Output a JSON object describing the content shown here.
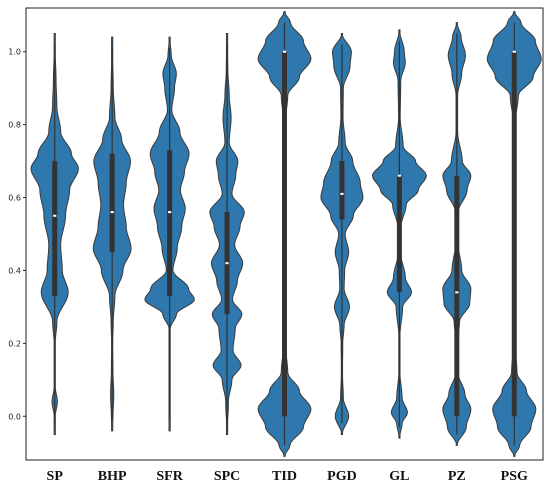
{
  "chart_data": {
    "type": "violin",
    "title": "",
    "xlabel": "",
    "ylabel": "",
    "ylim": [
      -0.12,
      1.12
    ],
    "yticks": [
      0.0,
      0.2,
      0.4,
      0.6,
      0.8,
      1.0
    ],
    "ytick_labels": [
      "0.0",
      "0.2",
      "0.4",
      "0.6",
      "0.8",
      "1.0"
    ],
    "color": "#2e78ae",
    "box_color": "#333333",
    "categories": [
      "SP",
      "BHP",
      "SFR",
      "SPC",
      "TID",
      "PGD",
      "GL",
      "PZ",
      "PSG"
    ],
    "series": [
      {
        "name": "SP",
        "min": -0.05,
        "max": 1.05,
        "q1": 0.33,
        "median": 0.55,
        "q3": 0.7,
        "density": [
          [
            -0.05,
            0.003
          ],
          [
            0.0,
            0.02
          ],
          [
            0.04,
            0.1
          ],
          [
            0.08,
            0.02
          ],
          [
            0.14,
            0.01
          ],
          [
            0.2,
            0.02
          ],
          [
            0.26,
            0.08
          ],
          [
            0.34,
            0.5
          ],
          [
            0.4,
            0.28
          ],
          [
            0.47,
            0.22
          ],
          [
            0.55,
            0.4
          ],
          [
            0.62,
            0.55
          ],
          [
            0.68,
            0.88
          ],
          [
            0.72,
            0.62
          ],
          [
            0.78,
            0.22
          ],
          [
            0.85,
            0.08
          ],
          [
            0.92,
            0.05
          ],
          [
            1.0,
            0.02
          ],
          [
            1.05,
            0.003
          ]
        ]
      },
      {
        "name": "BHP",
        "min": -0.04,
        "max": 1.04,
        "q1": 0.45,
        "median": 0.56,
        "q3": 0.72,
        "density": [
          [
            -0.04,
            0.003
          ],
          [
            0.0,
            0.03
          ],
          [
            0.06,
            0.06
          ],
          [
            0.12,
            0.03
          ],
          [
            0.2,
            0.02
          ],
          [
            0.26,
            0.04
          ],
          [
            0.33,
            0.1
          ],
          [
            0.4,
            0.4
          ],
          [
            0.46,
            0.7
          ],
          [
            0.52,
            0.52
          ],
          [
            0.58,
            0.42
          ],
          [
            0.64,
            0.52
          ],
          [
            0.7,
            0.68
          ],
          [
            0.76,
            0.35
          ],
          [
            0.82,
            0.1
          ],
          [
            0.9,
            0.04
          ],
          [
            0.98,
            0.02
          ],
          [
            1.04,
            0.003
          ]
        ]
      },
      {
        "name": "SFR",
        "min": -0.04,
        "max": 1.04,
        "q1": 0.33,
        "median": 0.56,
        "q3": 0.73,
        "density": [
          [
            -0.04,
            0.003
          ],
          [
            0.05,
            0.01
          ],
          [
            0.15,
            0.01
          ],
          [
            0.24,
            0.02
          ],
          [
            0.28,
            0.25
          ],
          [
            0.32,
            0.92
          ],
          [
            0.35,
            0.7
          ],
          [
            0.4,
            0.12
          ],
          [
            0.46,
            0.28
          ],
          [
            0.52,
            0.45
          ],
          [
            0.57,
            0.58
          ],
          [
            0.62,
            0.4
          ],
          [
            0.67,
            0.55
          ],
          [
            0.72,
            0.72
          ],
          [
            0.78,
            0.38
          ],
          [
            0.84,
            0.08
          ],
          [
            0.9,
            0.18
          ],
          [
            0.94,
            0.25
          ],
          [
            0.99,
            0.06
          ],
          [
            1.04,
            0.003
          ]
        ]
      },
      {
        "name": "SPC",
        "min": -0.05,
        "max": 1.05,
        "q1": 0.28,
        "median": 0.42,
        "q3": 0.56,
        "density": [
          [
            -0.05,
            0.003
          ],
          [
            0.04,
            0.05
          ],
          [
            0.1,
            0.18
          ],
          [
            0.14,
            0.52
          ],
          [
            0.18,
            0.22
          ],
          [
            0.24,
            0.3
          ],
          [
            0.28,
            0.55
          ],
          [
            0.32,
            0.2
          ],
          [
            0.37,
            0.38
          ],
          [
            0.42,
            0.58
          ],
          [
            0.47,
            0.28
          ],
          [
            0.52,
            0.48
          ],
          [
            0.56,
            0.64
          ],
          [
            0.61,
            0.18
          ],
          [
            0.66,
            0.32
          ],
          [
            0.7,
            0.4
          ],
          [
            0.75,
            0.08
          ],
          [
            0.82,
            0.15
          ],
          [
            0.88,
            0.08
          ],
          [
            0.95,
            0.03
          ],
          [
            1.05,
            0.003
          ]
        ]
      },
      {
        "name": "TID",
        "min": -0.11,
        "max": 1.11,
        "q1": 0.0,
        "median": 1.0,
        "q3": 1.0,
        "density": [
          [
            -0.11,
            0.003
          ],
          [
            -0.08,
            0.2
          ],
          [
            -0.03,
            0.7
          ],
          [
            0.02,
            0.98
          ],
          [
            0.07,
            0.55
          ],
          [
            0.12,
            0.12
          ],
          [
            0.2,
            0.03
          ],
          [
            0.3,
            0.01
          ],
          [
            0.4,
            0.01
          ],
          [
            0.5,
            0.01
          ],
          [
            0.6,
            0.01
          ],
          [
            0.7,
            0.01
          ],
          [
            0.8,
            0.02
          ],
          [
            0.88,
            0.12
          ],
          [
            0.93,
            0.55
          ],
          [
            0.98,
            0.98
          ],
          [
            1.03,
            0.7
          ],
          [
            1.08,
            0.22
          ],
          [
            1.11,
            0.003
          ]
        ]
      },
      {
        "name": "PGD",
        "min": -0.05,
        "max": 1.05,
        "q1": 0.54,
        "median": 0.61,
        "q3": 0.7,
        "density": [
          [
            -0.05,
            0.003
          ],
          [
            0.0,
            0.25
          ],
          [
            0.05,
            0.05
          ],
          [
            0.12,
            0.02
          ],
          [
            0.2,
            0.03
          ],
          [
            0.25,
            0.08
          ],
          [
            0.3,
            0.28
          ],
          [
            0.35,
            0.08
          ],
          [
            0.4,
            0.1
          ],
          [
            0.45,
            0.25
          ],
          [
            0.5,
            0.12
          ],
          [
            0.55,
            0.42
          ],
          [
            0.6,
            0.78
          ],
          [
            0.64,
            0.68
          ],
          [
            0.7,
            0.4
          ],
          [
            0.75,
            0.12
          ],
          [
            0.82,
            0.04
          ],
          [
            0.9,
            0.05
          ],
          [
            0.96,
            0.3
          ],
          [
            1.0,
            0.35
          ],
          [
            1.05,
            0.003
          ]
        ]
      },
      {
        "name": "GL",
        "min": -0.06,
        "max": 1.06,
        "q1": 0.34,
        "median": 0.66,
        "q3": 0.66,
        "density": [
          [
            -0.06,
            0.003
          ],
          [
            -0.02,
            0.1
          ],
          [
            0.01,
            0.3
          ],
          [
            0.05,
            0.1
          ],
          [
            0.12,
            0.02
          ],
          [
            0.22,
            0.02
          ],
          [
            0.3,
            0.12
          ],
          [
            0.34,
            0.45
          ],
          [
            0.38,
            0.22
          ],
          [
            0.45,
            0.04
          ],
          [
            0.52,
            0.06
          ],
          [
            0.58,
            0.25
          ],
          [
            0.62,
            0.7
          ],
          [
            0.66,
            1.0
          ],
          [
            0.7,
            0.6
          ],
          [
            0.74,
            0.14
          ],
          [
            0.82,
            0.03
          ],
          [
            0.92,
            0.05
          ],
          [
            0.97,
            0.22
          ],
          [
            1.0,
            0.18
          ],
          [
            1.06,
            0.003
          ]
        ]
      },
      {
        "name": "PZ",
        "min": -0.08,
        "max": 1.08,
        "q1": 0.0,
        "median": 0.34,
        "q3": 0.66,
        "density": [
          [
            -0.08,
            0.003
          ],
          [
            -0.03,
            0.35
          ],
          [
            0.02,
            0.52
          ],
          [
            0.06,
            0.3
          ],
          [
            0.12,
            0.04
          ],
          [
            0.2,
            0.02
          ],
          [
            0.26,
            0.1
          ],
          [
            0.31,
            0.48
          ],
          [
            0.35,
            0.52
          ],
          [
            0.4,
            0.18
          ],
          [
            0.48,
            0.03
          ],
          [
            0.56,
            0.05
          ],
          [
            0.62,
            0.38
          ],
          [
            0.66,
            0.52
          ],
          [
            0.7,
            0.2
          ],
          [
            0.78,
            0.03
          ],
          [
            0.88,
            0.03
          ],
          [
            0.94,
            0.18
          ],
          [
            0.99,
            0.32
          ],
          [
            1.04,
            0.16
          ],
          [
            1.08,
            0.003
          ]
        ]
      },
      {
        "name": "PSG",
        "min": -0.11,
        "max": 1.11,
        "q1": 0.0,
        "median": 1.0,
        "q3": 1.0,
        "density": [
          [
            -0.11,
            0.003
          ],
          [
            -0.08,
            0.2
          ],
          [
            -0.03,
            0.62
          ],
          [
            0.02,
            0.8
          ],
          [
            0.07,
            0.45
          ],
          [
            0.12,
            0.1
          ],
          [
            0.2,
            0.03
          ],
          [
            0.3,
            0.01
          ],
          [
            0.4,
            0.01
          ],
          [
            0.5,
            0.01
          ],
          [
            0.6,
            0.01
          ],
          [
            0.7,
            0.01
          ],
          [
            0.8,
            0.02
          ],
          [
            0.88,
            0.15
          ],
          [
            0.93,
            0.7
          ],
          [
            0.98,
            1.0
          ],
          [
            1.03,
            0.78
          ],
          [
            1.08,
            0.25
          ],
          [
            1.11,
            0.003
          ]
        ]
      }
    ]
  }
}
